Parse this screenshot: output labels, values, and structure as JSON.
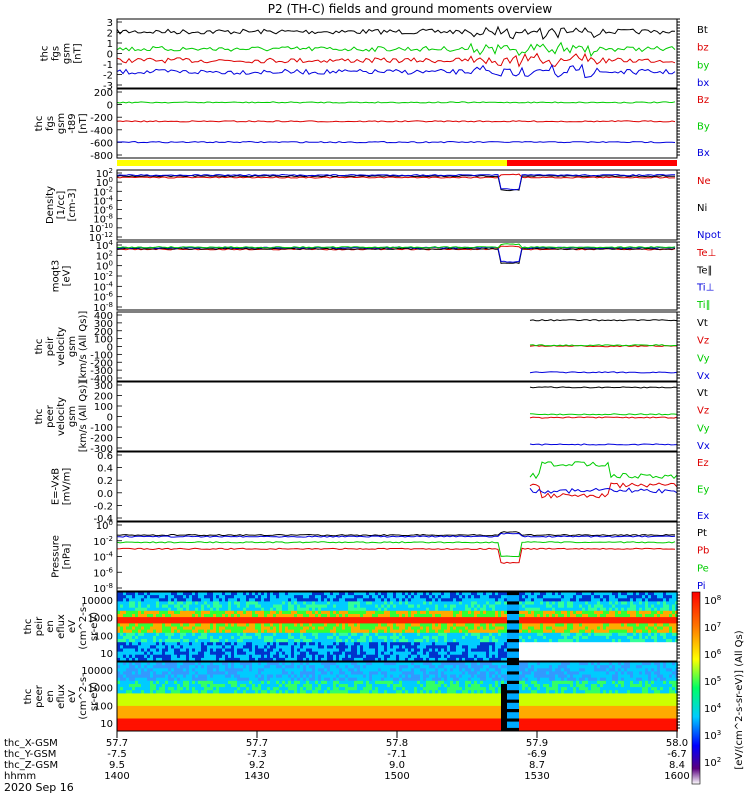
{
  "title": "P2 (TH-C) fields and ground moments overview",
  "date": "2020 Sep 16",
  "colors": {
    "black": "#000000",
    "red": "#dd0000",
    "green": "#00cc00",
    "blue": "#0000dd",
    "yellow": "#ffff00",
    "barred": "#ff0000"
  },
  "x_axis": {
    "rows": [
      {
        "label": "thc_X-GSM",
        "values": [
          "57.7",
          "57.7",
          "57.8",
          "57.9",
          "58.0"
        ]
      },
      {
        "label": "thc_Y-GSM",
        "values": [
          "-7.5",
          "-7.3",
          "-7.1",
          "-6.9",
          "-6.7"
        ]
      },
      {
        "label": "thc_Z-GSM",
        "values": [
          "9.5",
          "9.2",
          "9.0",
          "8.7",
          "8.4"
        ]
      },
      {
        "label": "hhmm",
        "values": [
          "1400",
          "1430",
          "1500",
          "1530",
          "1600"
        ]
      }
    ]
  },
  "colorbar": {
    "label": "[eV/(cm^2-s-sr-eV)] (All Qs)",
    "ticks": [
      "10^8",
      "10^7",
      "10^6",
      "10^5",
      "10^4",
      "10^3",
      "10^2"
    ]
  },
  "chart_data": [
    {
      "type": "line",
      "id": "fgs",
      "ylabel": [
        "thc",
        "fgs",
        "gsm",
        "[nT]"
      ],
      "ticks": [
        "3",
        "2",
        "1",
        "0",
        "-1",
        "-2",
        "-3"
      ],
      "ylim": [
        -3,
        3
      ],
      "series": [
        {
          "name": "Bt",
          "color": "black",
          "level": 1.9
        },
        {
          "name": "bz",
          "color": "red",
          "level": -0.6
        },
        {
          "name": "by",
          "color": "green",
          "level": 0.4
        },
        {
          "name": "bx",
          "color": "blue",
          "level": -1.6
        }
      ]
    },
    {
      "type": "line",
      "id": "fgs2",
      "ylabel": [
        "thc",
        "fgs",
        "gsm",
        "-t89",
        "[nT]"
      ],
      "ticks": [
        "200",
        "0",
        "-200",
        "-400",
        "-600",
        "-800"
      ],
      "ylim": [
        -900,
        230
      ],
      "series": [
        {
          "name": "Bz",
          "color": "red",
          "level": -300
        },
        {
          "name": "By",
          "color": "green",
          "level": 10
        },
        {
          "name": "Bx",
          "color": "blue",
          "level": -640
        }
      ]
    },
    {
      "type": "line",
      "id": "density",
      "ylabel": [
        "Density",
        "[1/cc]",
        "[cm-3]"
      ],
      "ticks": [
        "10^2",
        "10^0",
        "10^-2",
        "10^-4",
        "10^-6",
        "10^-8",
        "10^-10",
        "10^-12"
      ],
      "ylim": [
        -13,
        2
      ],
      "series": [
        {
          "name": "Ne",
          "color": "red",
          "level": 0.4
        },
        {
          "name": "Ni",
          "color": "black",
          "level": 0.7
        },
        {
          "name": "Npot",
          "color": "blue",
          "level": 0.9
        }
      ]
    },
    {
      "type": "line",
      "id": "temp",
      "ylabel": [
        "moqt3",
        "[eV]"
      ],
      "ticks": [
        "10^4",
        "10^2",
        "10^0",
        "10^-2",
        "10^-4",
        "10^-6",
        "10^-8"
      ],
      "ylim": [
        -9,
        4
      ],
      "series": [
        {
          "name": "Te⊥",
          "color": "red",
          "level": 2.6
        },
        {
          "name": "Te∥",
          "color": "black",
          "level": 2.7
        },
        {
          "name": "Ti⊥",
          "color": "blue",
          "level": 2.9
        },
        {
          "name": "Ti∥",
          "color": "green",
          "level": 3.0
        }
      ]
    },
    {
      "type": "line",
      "id": "peir",
      "ylabel": [
        "thc",
        "peir",
        "velocity",
        "gsm",
        "[km/s (All Qs)]"
      ],
      "ticks": [
        "400",
        "300",
        "200",
        "100",
        "0",
        "-100",
        "-200",
        "-300",
        "-400"
      ],
      "ylim": [
        -420,
        420
      ],
      "series": [
        {
          "name": "Vt",
          "color": "black",
          "level": 320
        },
        {
          "name": "Vz",
          "color": "red",
          "level": 5
        },
        {
          "name": "Vy",
          "color": "green",
          "level": 15
        },
        {
          "name": "Vx",
          "color": "blue",
          "level": -315
        }
      ]
    },
    {
      "type": "line",
      "id": "peer",
      "ylabel": [
        "thc",
        "peer",
        "velocity",
        "gsm",
        "[km/s (All Qs)]"
      ],
      "ticks": [
        "300",
        "200",
        "100",
        "0",
        "-100",
        "-200",
        "-300"
      ],
      "ylim": [
        -320,
        320
      ],
      "series": [
        {
          "name": "Vt",
          "color": "black",
          "level": 270
        },
        {
          "name": "Vz",
          "color": "red",
          "level": -10
        },
        {
          "name": "Vy",
          "color": "green",
          "level": 20
        },
        {
          "name": "Vx",
          "color": "blue",
          "level": -260
        }
      ]
    },
    {
      "type": "line",
      "id": "efield",
      "ylabel": [
        "E=-VxB",
        "[mV/m]"
      ],
      "ticks": [
        "0.6",
        "0.4",
        "0.2",
        "0.0",
        "-0.2",
        "-0.4"
      ],
      "ylim": [
        -0.45,
        0.62
      ],
      "series": [
        {
          "name": "Ez",
          "color": "red",
          "level": 0.1
        },
        {
          "name": "Ey",
          "color": "green",
          "level": 0.25
        },
        {
          "name": "Ex",
          "color": "blue",
          "level": 0.02
        }
      ]
    },
    {
      "type": "line",
      "id": "pressure",
      "ylabel": [
        "Pressure",
        "[nPa]"
      ],
      "ticks": [
        "10^0",
        "10^-2",
        "10^-4",
        "10^-6",
        "10^-8"
      ],
      "ylim": [
        -9,
        0.5
      ],
      "series": [
        {
          "name": "Pt",
          "color": "black",
          "level": -1.3
        },
        {
          "name": "Pb",
          "color": "red",
          "level": -3.2
        },
        {
          "name": "Pe",
          "color": "green",
          "level": -2.3
        },
        {
          "name": "Pi",
          "color": "blue",
          "level": -1.5
        }
      ]
    },
    {
      "type": "heatmap",
      "id": "peir_spec",
      "ylabel": [
        "thc",
        "peir",
        "en",
        "eflux",
        "eV",
        "(cm^2-s-",
        "sr-eV)"
      ],
      "ticks": [
        "10000",
        "1000",
        "100",
        "10"
      ],
      "ylim": [
        3,
        12000
      ]
    },
    {
      "type": "heatmap",
      "id": "peer_spec",
      "ylabel": [
        "thc",
        "peer",
        "en",
        "eflux",
        "eV",
        "(cm^2-s-",
        "sr-eV)"
      ],
      "ticks": [
        "10000",
        "1000",
        "100",
        "10"
      ],
      "ylim": [
        6,
        12000
      ]
    }
  ]
}
